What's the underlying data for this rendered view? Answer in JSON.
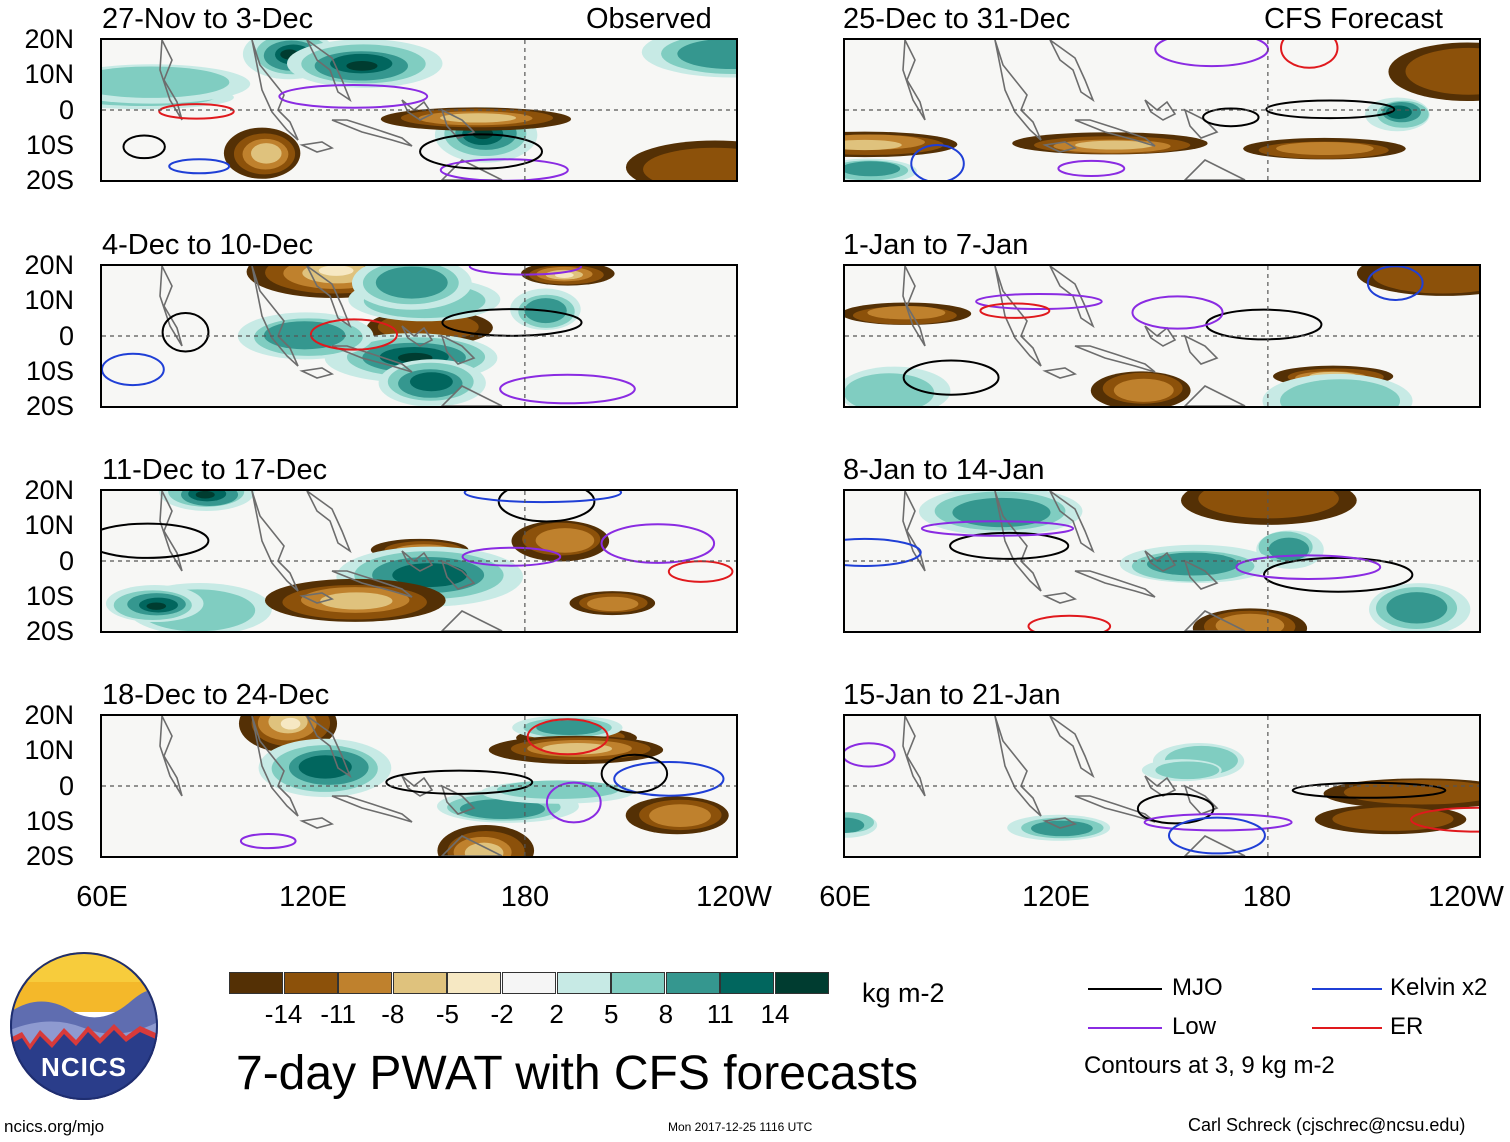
{
  "panels": [
    {
      "title": "27-Nov to 3-Dec",
      "tag": "Observed"
    },
    {
      "title": "4-Dec to 10-Dec",
      "tag": ""
    },
    {
      "title": "11-Dec to 17-Dec",
      "tag": ""
    },
    {
      "title": "18-Dec to 24-Dec",
      "tag": ""
    },
    {
      "title": "25-Dec to 31-Dec",
      "tag": "CFS Forecast"
    },
    {
      "title": "1-Jan to 7-Jan",
      "tag": ""
    },
    {
      "title": "8-Jan to 14-Jan",
      "tag": ""
    },
    {
      "title": "15-Jan to 21-Jan",
      "tag": ""
    }
  ],
  "lat_labels": [
    "20N",
    "10N",
    "0",
    "10S",
    "20S"
  ],
  "lon_labels": [
    "60E",
    "120E",
    "180",
    "120W"
  ],
  "colorbar": {
    "ticks": [
      "-14",
      "-11",
      "-8",
      "-5",
      "-2",
      "2",
      "5",
      "8",
      "11",
      "14"
    ],
    "colors": [
      "#543005",
      "#8c510a",
      "#bf812d",
      "#dfc27d",
      "#f6e8c3",
      "#f5f5f5",
      "#c7eae5",
      "#80cdc1",
      "#35978f",
      "#01665e",
      "#003c30"
    ],
    "units": "kg m-2"
  },
  "title": "7-day PWAT with CFS forecasts",
  "legend": {
    "items": [
      {
        "label": "MJO",
        "color": "#000000"
      },
      {
        "label": "Kelvin x2",
        "color": "#1f3fd6"
      },
      {
        "label": "Low",
        "color": "#8a2be2"
      },
      {
        "label": "ER",
        "color": "#e0191d"
      }
    ],
    "note": "Contours at 3, 9 kg m-2"
  },
  "logo": {
    "text": "NCICS"
  },
  "footer": {
    "url": "ncics.org/mjo",
    "timestamp": "Mon 2017-12-25 1116 UTC",
    "author": "Carl Schreck (cjschrec@ncsu.edu)"
  }
}
